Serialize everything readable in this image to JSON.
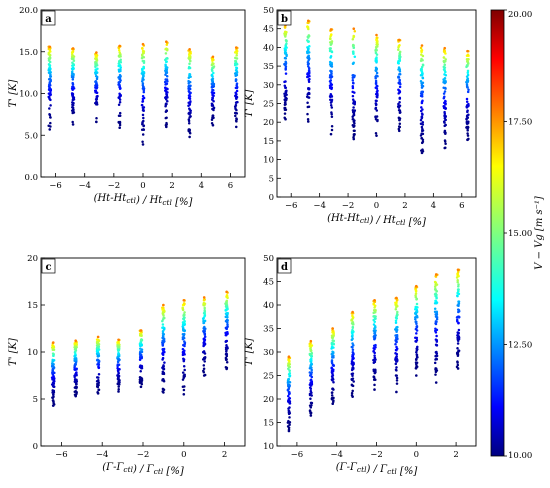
{
  "colorbar": {
    "label": "V − Vg [m s⁻¹]",
    "min": 10.0,
    "max": 20.0,
    "ticks": [
      10.0,
      12.5,
      15.0,
      17.5,
      20.0
    ],
    "tick_labels": [
      "10.00",
      "12.50",
      "15.00",
      "17.50",
      "20.00"
    ],
    "colormap": "jet"
  },
  "chart_data": [
    {
      "panel": "a",
      "type": "scatter",
      "xlabel": "(Ht-Ht_ctl) / Ht_ctl [%]",
      "ylabel": "T' [K]",
      "xlim": [
        -7,
        7
      ],
      "ylim": [
        0,
        20
      ],
      "xticks": [
        -6,
        -4,
        -2,
        0,
        2,
        4,
        6
      ],
      "xtick_labels": [
        "−6",
        "−4",
        "−2",
        "0",
        "2",
        "4",
        "6"
      ],
      "yticks": [
        0,
        5,
        10,
        15,
        20
      ],
      "ytick_labels": [
        "0.0",
        "5.0",
        "10.0",
        "15.0",
        "20.0"
      ],
      "columns": [
        {
          "x": -6.4,
          "ymin": 5.7,
          "ymax": 15.6
        },
        {
          "x": -4.8,
          "ymin": 6.3,
          "ymax": 15.4
        },
        {
          "x": -3.2,
          "ymin": 6.6,
          "ymax": 14.9
        },
        {
          "x": -1.6,
          "ymin": 5.9,
          "ymax": 15.7
        },
        {
          "x": 0.0,
          "ymin": 3.9,
          "ymax": 15.9
        },
        {
          "x": 1.6,
          "ymin": 6.0,
          "ymax": 16.2
        },
        {
          "x": 3.2,
          "ymin": 4.8,
          "ymax": 15.3
        },
        {
          "x": 4.8,
          "ymin": 6.2,
          "ymax": 14.4
        },
        {
          "x": 6.4,
          "ymin": 6.0,
          "ymax": 15.5
        }
      ]
    },
    {
      "panel": "b",
      "type": "scatter",
      "xlabel": "(Ht-Ht_ctl) / Ht_ctl [%]",
      "ylabel": "T' [K]",
      "xlim": [
        -7,
        7
      ],
      "ylim": [
        0,
        50
      ],
      "xticks": [
        -6,
        -4,
        -2,
        0,
        2,
        4,
        6
      ],
      "xtick_labels": [
        "−6",
        "−4",
        "−2",
        "0",
        "2",
        "4",
        "6"
      ],
      "yticks": [
        0,
        5,
        10,
        15,
        20,
        25,
        30,
        35,
        40,
        45,
        50
      ],
      "ytick_labels": [
        "0",
        "5",
        "10",
        "15",
        "20",
        "25",
        "30",
        "35",
        "40",
        "45",
        "50"
      ],
      "columns": [
        {
          "x": -6.4,
          "ymin": 20.8,
          "ymax": 46.0
        },
        {
          "x": -4.8,
          "ymin": 20.2,
          "ymax": 47.1
        },
        {
          "x": -3.2,
          "ymin": 16.8,
          "ymax": 44.8
        },
        {
          "x": -1.6,
          "ymin": 15.5,
          "ymax": 45.0
        },
        {
          "x": 0.0,
          "ymin": 16.4,
          "ymax": 43.3
        },
        {
          "x": 1.6,
          "ymin": 17.7,
          "ymax": 42.0
        },
        {
          "x": 3.2,
          "ymin": 11.8,
          "ymax": 40.5
        },
        {
          "x": 4.8,
          "ymin": 13.1,
          "ymax": 39.8
        },
        {
          "x": 6.4,
          "ymin": 15.3,
          "ymax": 39.0
        }
      ]
    },
    {
      "panel": "c",
      "type": "scatter",
      "xlabel": "(Γ-Γ_ctl) / Γ_ctl [%]",
      "ylabel": "T' [K]",
      "xlim": [
        -7,
        3
      ],
      "ylim": [
        0,
        20
      ],
      "xticks": [
        -6,
        -4,
        -2,
        0,
        2
      ],
      "xtick_labels": [
        "−6",
        "−4",
        "−2",
        "0",
        "2"
      ],
      "yticks": [
        0,
        5,
        10,
        15,
        20
      ],
      "ytick_labels": [
        "0",
        "5",
        "10",
        "15",
        "20"
      ],
      "columns": [
        {
          "x": -6.4,
          "ymin": 4.3,
          "ymax": 11.0
        },
        {
          "x": -5.3,
          "ymin": 5.3,
          "ymax": 11.2
        },
        {
          "x": -4.2,
          "ymin": 5.6,
          "ymax": 11.6
        },
        {
          "x": -3.2,
          "ymin": 5.8,
          "ymax": 11.3
        },
        {
          "x": -2.1,
          "ymin": 6.3,
          "ymax": 12.3
        },
        {
          "x": -1.0,
          "ymin": 5.7,
          "ymax": 15.0
        },
        {
          "x": 0.0,
          "ymin": 5.5,
          "ymax": 15.5
        },
        {
          "x": 1.0,
          "ymin": 7.5,
          "ymax": 15.8
        },
        {
          "x": 2.1,
          "ymin": 8.2,
          "ymax": 16.4
        }
      ]
    },
    {
      "panel": "d",
      "type": "scatter",
      "xlabel": "(Γ-Γ_ctl) / Γ_ctl [%]",
      "ylabel": "T' [K]",
      "xlim": [
        -7,
        3
      ],
      "ylim": [
        10,
        50
      ],
      "xticks": [
        -6,
        -4,
        -2,
        0,
        2
      ],
      "xtick_labels": [
        "−6",
        "−4",
        "−2",
        "0",
        "2"
      ],
      "yticks": [
        10,
        15,
        20,
        25,
        30,
        35,
        40,
        45,
        50
      ],
      "ytick_labels": [
        "10",
        "15",
        "20",
        "25",
        "30",
        "35",
        "40",
        "45",
        "50"
      ],
      "columns": [
        {
          "x": -6.4,
          "ymin": 13.2,
          "ymax": 29.0
        },
        {
          "x": -5.3,
          "ymin": 16.5,
          "ymax": 32.3
        },
        {
          "x": -4.2,
          "ymin": 19.0,
          "ymax": 35.0
        },
        {
          "x": -3.2,
          "ymin": 20.5,
          "ymax": 38.5
        },
        {
          "x": -2.1,
          "ymin": 22.0,
          "ymax": 41.0
        },
        {
          "x": -1.0,
          "ymin": 21.5,
          "ymax": 41.5
        },
        {
          "x": 0.0,
          "ymin": 25.0,
          "ymax": 44.0
        },
        {
          "x": 1.0,
          "ymin": 23.5,
          "ymax": 46.5
        },
        {
          "x": 2.1,
          "ymin": 26.5,
          "ymax": 47.5
        }
      ]
    }
  ]
}
